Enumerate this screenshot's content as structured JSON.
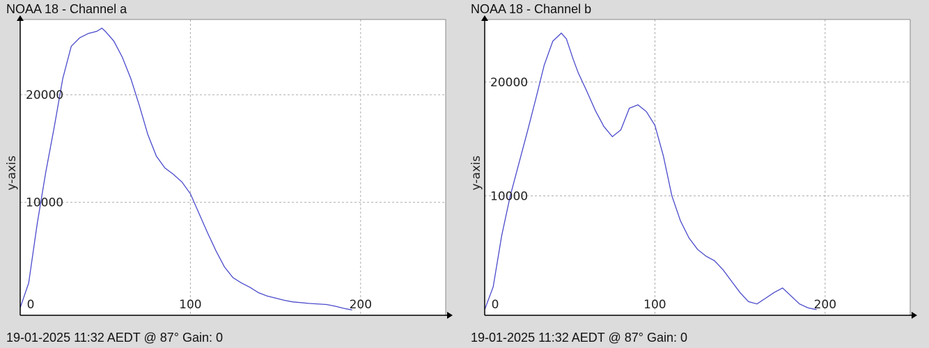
{
  "chart_data": [
    {
      "type": "line",
      "title": "NOAA 18 - Channel a",
      "footer": "19-01-2025 11:32 AEDT @ 87° Gain: 0",
      "xlabel": "",
      "ylabel": "y-axis",
      "xlim": [
        0,
        250
      ],
      "ylim": [
        -500,
        27000
      ],
      "xticks": [
        "0",
        "100",
        "200"
      ],
      "yticks": [
        "10000",
        "20000"
      ],
      "grid": true,
      "line_color": "#4a4acc",
      "x": [
        0,
        5,
        10,
        15,
        20,
        25,
        30,
        35,
        40,
        45,
        48,
        50,
        55,
        60,
        65,
        70,
        75,
        80,
        85,
        90,
        95,
        100,
        105,
        110,
        115,
        120,
        125,
        130,
        135,
        140,
        145,
        150,
        155,
        160,
        170,
        180,
        185,
        190,
        195
      ],
      "values": [
        200,
        2500,
        8000,
        12800,
        17000,
        21500,
        24500,
        25300,
        25700,
        25900,
        26200,
        25900,
        25000,
        23500,
        21500,
        19000,
        16300,
        14300,
        13200,
        12600,
        11900,
        10800,
        9000,
        7200,
        5500,
        4000,
        3000,
        2500,
        2100,
        1600,
        1300,
        1100,
        900,
        750,
        600,
        500,
        350,
        150,
        0
      ]
    },
    {
      "type": "line",
      "title": "NOAA 18 - Channel b",
      "footer": "19-01-2025 11:32 AEDT @ 87° Gain: 0",
      "xlabel": "",
      "ylabel": "y-axis",
      "xlim": [
        0,
        250
      ],
      "ylim": [
        -500,
        25500
      ],
      "xticks": [
        "0",
        "100",
        "200"
      ],
      "yticks": [
        "10000",
        "20000"
      ],
      "grid": true,
      "line_color": "#4a4acc",
      "x": [
        0,
        5,
        10,
        15,
        20,
        25,
        30,
        35,
        40,
        45,
        48,
        52,
        55,
        60,
        65,
        70,
        75,
        80,
        85,
        90,
        95,
        100,
        105,
        110,
        115,
        120,
        125,
        130,
        135,
        140,
        145,
        150,
        155,
        160,
        165,
        170,
        175,
        180,
        185,
        190,
        195
      ],
      "values": [
        0,
        2000,
        6500,
        10000,
        12800,
        15600,
        18500,
        21500,
        23600,
        24300,
        23800,
        22000,
        20800,
        19200,
        17500,
        16100,
        15200,
        15800,
        17700,
        18000,
        17400,
        16200,
        13500,
        10000,
        7800,
        6300,
        5300,
        4700,
        4300,
        3500,
        2500,
        1500,
        700,
        500,
        1000,
        1500,
        1900,
        1200,
        500,
        150,
        0
      ]
    }
  ]
}
